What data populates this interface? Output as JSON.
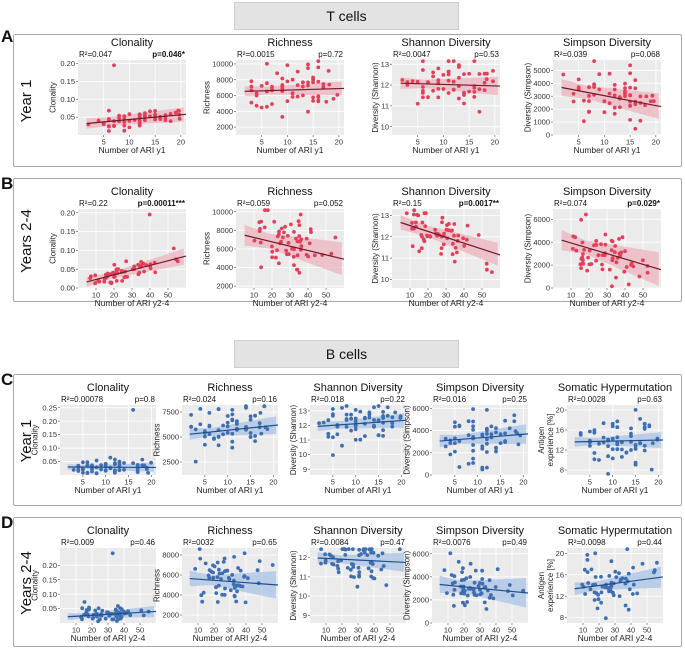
{
  "sections": {
    "t_cells": "T cells",
    "b_cells": "B cells"
  },
  "panels": [
    {
      "letter": "A",
      "label": "Year 1"
    },
    {
      "letter": "B",
      "label": "Years 2-4"
    },
    {
      "letter": "C",
      "label": "Year 1"
    },
    {
      "letter": "D",
      "label": "Years 2-4"
    }
  ],
  "colors": {
    "t_cell_points": "#e2405a",
    "t_cell_line": "#6b1a2a",
    "t_cell_band": "#eeb3bd",
    "b_cell_points": "#3f6fb0",
    "b_cell_line": "#1f4e8c",
    "b_cell_band": "#a9c3e6",
    "plot_background": "#ebebeb",
    "grid": "#ffffff"
  },
  "chart_data": [
    {
      "id": "A1",
      "type": "scatter",
      "title": "Clonality",
      "xlabel": "Number of ARI y1",
      "ylabel": "Clonality",
      "xlim": [
        0,
        21
      ],
      "ylim": [
        0,
        0.21
      ],
      "xticks": [
        5,
        10,
        15,
        20
      ],
      "yticks": [
        0.05,
        0.1,
        0.15,
        0.2
      ],
      "ytick_labels": [
        "0.05",
        "0.10",
        "0.15",
        "0.20"
      ],
      "r2": "R²=0.047",
      "p": "p=0.046*",
      "p_bold": true,
      "fit": [
        0.03,
        0.058
      ],
      "band": [
        0.012,
        0.02
      ],
      "color": "t",
      "seed": 11
    },
    {
      "id": "A2",
      "type": "scatter",
      "title": "Richness",
      "xlabel": "Number of ARI y1",
      "ylabel": "Richness",
      "xlim": [
        0,
        21
      ],
      "ylim": [
        1000,
        10500
      ],
      "xticks": [
        5,
        10,
        15,
        20
      ],
      "yticks": [
        2000,
        4000,
        6000,
        8000,
        10000
      ],
      "ytick_labels": [
        "2000",
        "4000",
        "6000",
        "8000",
        "10000"
      ],
      "r2": "R²=0.0015",
      "p": "p=0.72",
      "p_bold": false,
      "fit": [
        6500,
        6900
      ],
      "band": [
        500,
        900
      ],
      "color": "t",
      "seed": 12
    },
    {
      "id": "A3",
      "type": "scatter",
      "title": "Shannon Diversity",
      "xlabel": "Number of ARI y1",
      "ylabel": "Diversity (Shannon)",
      "xlim": [
        0,
        21
      ],
      "ylim": [
        9.6,
        13.2
      ],
      "xticks": [
        5,
        10,
        15,
        20
      ],
      "yticks": [
        10,
        11,
        12,
        13
      ],
      "ytick_labels": [
        "10",
        "11",
        "12",
        "13"
      ],
      "r2": "R²=0.0047",
      "p": "p=0.53",
      "p_bold": false,
      "fit": [
        12.1,
        11.95
      ],
      "band": [
        0.2,
        0.45
      ],
      "color": "t",
      "seed": 13
    },
    {
      "id": "A4",
      "type": "scatter",
      "title": "Simpson Diversity",
      "xlabel": "Number of ARI y1",
      "ylabel": "Diversity (Simpson)",
      "xlim": [
        0,
        21
      ],
      "ylim": [
        0,
        5800
      ],
      "xticks": [
        5,
        10,
        15,
        20
      ],
      "yticks": [
        0,
        1000,
        2000,
        3000,
        4000,
        5000
      ],
      "ytick_labels": [
        "0",
        "1000",
        "2000",
        "3000",
        "4000",
        "5000"
      ],
      "r2": "R²=0.039",
      "p": "p=0.068",
      "p_bold": false,
      "fit": [
        3800,
        2200
      ],
      "band": [
        500,
        1000
      ],
      "color": "t",
      "seed": 14
    },
    {
      "id": "B1",
      "type": "scatter",
      "title": "Clonality",
      "xlabel": "Number of ARI y2-4",
      "ylabel": "Clonality",
      "xlim": [
        0,
        60
      ],
      "ylim": [
        0,
        0.21
      ],
      "xticks": [
        10,
        20,
        30,
        40,
        50
      ],
      "yticks": [
        0,
        0.05,
        0.1,
        0.15,
        0.2
      ],
      "ytick_labels": [
        "0.00",
        "0.05",
        "0.10",
        "0.15",
        "0.20"
      ],
      "r2": "R²=0.22",
      "p": "p=0.00011***",
      "p_bold": true,
      "fit": [
        0.01,
        0.085
      ],
      "band": [
        0.008,
        0.022
      ],
      "color": "t",
      "seed": 21
    },
    {
      "id": "B2",
      "type": "scatter",
      "title": "Richness",
      "xlabel": "Number of ARI y2-4",
      "ylabel": "Richness",
      "xlim": [
        0,
        60
      ],
      "ylim": [
        1800,
        10300
      ],
      "xticks": [
        10,
        20,
        30,
        40,
        50
      ],
      "yticks": [
        2000,
        4000,
        6000,
        8000,
        10000
      ],
      "ytick_labels": [
        "2000",
        "4000",
        "6000",
        "8000",
        "10000"
      ],
      "r2": "R²=0.059",
      "p": "p=0.052",
      "p_bold": false,
      "fit": [
        7700,
        4900
      ],
      "band": [
        800,
        1800
      ],
      "color": "t",
      "seed": 22
    },
    {
      "id": "B3",
      "type": "scatter",
      "title": "Shannon Diversity",
      "xlabel": "Number of ARI y2-4",
      "ylabel": "Diversity (Shannon)",
      "xlim": [
        0,
        60
      ],
      "ylim": [
        9.6,
        13.3
      ],
      "xticks": [
        10,
        20,
        30,
        40,
        50
      ],
      "yticks": [
        10,
        11,
        12,
        13
      ],
      "ytick_labels": [
        "10",
        "11",
        "12",
        "13"
      ],
      "r2": "R²=0.15",
      "p": "p=0.0017**",
      "p_bold": true,
      "fit": [
        12.8,
        11.15
      ],
      "band": [
        0.25,
        0.55
      ],
      "color": "t",
      "seed": 23
    },
    {
      "id": "B4",
      "type": "scatter",
      "title": "Simpson Diversity",
      "xlabel": "Number of ARI y2-4",
      "ylabel": "Diversity (Simpson)",
      "xlim": [
        0,
        60
      ],
      "ylim": [
        0,
        6900
      ],
      "xticks": [
        10,
        20,
        30,
        40,
        50
      ],
      "yticks": [
        0,
        2000,
        4000,
        6000
      ],
      "ytick_labels": [
        "0",
        "2000",
        "4000",
        "6000"
      ],
      "r2": "R²=0.074",
      "p": "p=0.029*",
      "p_bold": true,
      "fit": [
        4400,
        1600
      ],
      "band": [
        600,
        1500
      ],
      "color": "t",
      "seed": 24
    },
    {
      "id": "C1",
      "type": "scatter",
      "title": "Clonality",
      "xlabel": "Number of ARI y1",
      "ylabel": "Clonality",
      "xlim": [
        0,
        21
      ],
      "ylim": [
        0,
        0.26
      ],
      "xticks": [
        5,
        10,
        15,
        20
      ],
      "yticks": [
        0.05,
        0.1,
        0.15,
        0.2,
        0.25
      ],
      "ytick_labels": [
        "0.05",
        "0.10",
        "0.15",
        "0.20",
        "0.25"
      ],
      "r2": "R²=0.00078",
      "p": "p=0.8",
      "p_bold": false,
      "fit": [
        0.03,
        0.028
      ],
      "band": [
        0.008,
        0.016
      ],
      "color": "b",
      "seed": 31
    },
    {
      "id": "C2",
      "type": "scatter",
      "title": "Richness",
      "xlabel": "Number of ARI y1",
      "ylabel": "Richness",
      "xlim": [
        0,
        21
      ],
      "ylim": [
        1200,
        8200
      ],
      "xticks": [
        5,
        10,
        15,
        20
      ],
      "yticks": [
        2500,
        5000,
        7500
      ],
      "ytick_labels": [
        "2500",
        "5000",
        "7500"
      ],
      "r2": "R²=0.024",
      "p": "p=0.16",
      "p_bold": false,
      "fit": [
        5200,
        6200
      ],
      "band": [
        400,
        900
      ],
      "color": "b",
      "seed": 32
    },
    {
      "id": "C3",
      "type": "scatter",
      "title": "Shannon Diversity",
      "xlabel": "Number of ARI y1",
      "ylabel": "Diversity (Shannon)",
      "xlim": [
        0,
        21
      ],
      "ylim": [
        8.6,
        13.4
      ],
      "xticks": [
        5,
        10,
        15,
        20
      ],
      "yticks": [
        9,
        10,
        11,
        12,
        13
      ],
      "ytick_labels": [
        "9",
        "10",
        "11",
        "12",
        "13"
      ],
      "r2": "R²=0.018",
      "p": "p=0.22",
      "p_bold": false,
      "fit": [
        11.9,
        12.35
      ],
      "band": [
        0.25,
        0.5
      ],
      "color": "b",
      "seed": 33
    },
    {
      "id": "C4",
      "type": "scatter",
      "title": "Simpson Diversity",
      "xlabel": "Number of ARI y1",
      "ylabel": "Diversity (Simpson)",
      "xlim": [
        0,
        21
      ],
      "ylim": [
        0,
        6300
      ],
      "xticks": [
        5,
        10,
        15,
        20
      ],
      "yticks": [
        0,
        2000,
        4000,
        6000
      ],
      "ytick_labels": [
        "0",
        "2000",
        "4000",
        "6000"
      ],
      "r2": "R²=0.016",
      "p": "p=0.25",
      "p_bold": false,
      "fit": [
        3000,
        3700
      ],
      "band": [
        400,
        900
      ],
      "color": "b",
      "seed": 34
    },
    {
      "id": "C5",
      "type": "scatter",
      "title": "Somatic Hypermutation",
      "xlabel": "Number of ARI y1",
      "ylabel": "Antigen experience [%]",
      "xlim": [
        0,
        21
      ],
      "ylim": [
        7,
        21
      ],
      "xticks": [
        5,
        10,
        15,
        20
      ],
      "yticks": [
        8,
        12,
        16,
        20
      ],
      "ytick_labels": [
        "8",
        "12",
        "16",
        "20"
      ],
      "r2": "R²=0.0028",
      "p": "p=0.63",
      "p_bold": false,
      "fit": [
        13.6,
        14.0
      ],
      "band": [
        0.7,
        1.6
      ],
      "color": "b",
      "seed": 35
    },
    {
      "id": "D1",
      "type": "scatter",
      "title": "Clonality",
      "xlabel": "Number of ARI y2-4",
      "ylabel": "Clonality",
      "xlim": [
        0,
        60
      ],
      "ylim": [
        0,
        0.26
      ],
      "xticks": [
        10,
        20,
        30,
        40,
        50
      ],
      "yticks": [
        0.05,
        0.1,
        0.15,
        0.2
      ],
      "ytick_labels": [
        "0.05",
        "0.10",
        "0.15",
        "0.20"
      ],
      "r2": "R²=0.009",
      "p": "p=0.46",
      "p_bold": false,
      "fit": [
        0.02,
        0.04
      ],
      "band": [
        0.008,
        0.02
      ],
      "color": "b",
      "seed": 41
    },
    {
      "id": "D2",
      "type": "scatter",
      "title": "Richness",
      "xlabel": "Number of ARI y2-4",
      "ylabel": "Richness",
      "xlim": [
        0,
        60
      ],
      "ylim": [
        1200,
        8700
      ],
      "xticks": [
        10,
        20,
        30,
        40,
        50
      ],
      "yticks": [
        2000,
        4000,
        6000,
        8000
      ],
      "ytick_labels": [
        "2000",
        "4000",
        "6000",
        "8000"
      ],
      "r2": "R²=0032",
      "p": "p=0.65",
      "p_bold": false,
      "fit": [
        5700,
        5000
      ],
      "band": [
        500,
        1400
      ],
      "color": "b",
      "seed": 42
    },
    {
      "id": "D3",
      "type": "scatter",
      "title": "Shannon Diversity",
      "xlabel": "Number of ARI y2-4",
      "ylabel": "Diversity (Shannon)",
      "xlim": [
        0,
        60
      ],
      "ylim": [
        8.6,
        12.5
      ],
      "xticks": [
        10,
        20,
        30,
        40,
        50
      ],
      "yticks": [
        9,
        10,
        11,
        12
      ],
      "ytick_labels": [
        "9",
        "10",
        "11",
        "12"
      ],
      "r2": "R²=0.0084",
      "p": "p=0.47",
      "p_bold": false,
      "fit": [
        12.0,
        11.75
      ],
      "band": [
        0.2,
        0.5
      ],
      "color": "b",
      "seed": 43
    },
    {
      "id": "D4",
      "type": "scatter",
      "title": "Simpson Diversity",
      "xlabel": "Number of ARI y2-4",
      "ylabel": "Diversity (Simpson)",
      "xlim": [
        0,
        60
      ],
      "ylim": [
        0,
        6500
      ],
      "xticks": [
        10,
        20,
        30,
        40,
        50
      ],
      "yticks": [
        0,
        2000,
        4000,
        6000
      ],
      "ytick_labels": [
        "0",
        "2000",
        "4000",
        "6000"
      ],
      "r2": "R²=0.0076",
      "p": "p=0.49",
      "p_bold": false,
      "fit": [
        3400,
        2600
      ],
      "band": [
        500,
        1300
      ],
      "color": "b",
      "seed": 44
    },
    {
      "id": "D5",
      "type": "scatter",
      "title": "Somatic Hypermutation",
      "xlabel": "Number of ARI y2-4",
      "ylabel": "Antigen experience [%]",
      "xlim": [
        0,
        60
      ],
      "ylim": [
        7,
        21
      ],
      "xticks": [
        10,
        20,
        30,
        40,
        50
      ],
      "yticks": [
        8,
        12,
        16,
        20
      ],
      "ytick_labels": [
        "8",
        "12",
        "16",
        "20"
      ],
      "r2": "R²=0.0098",
      "p": "p=0.44",
      "p_bold": false,
      "fit": [
        13.2,
        15.6
      ],
      "band": [
        0.8,
        2.0
      ],
      "color": "b",
      "seed": 45
    }
  ]
}
